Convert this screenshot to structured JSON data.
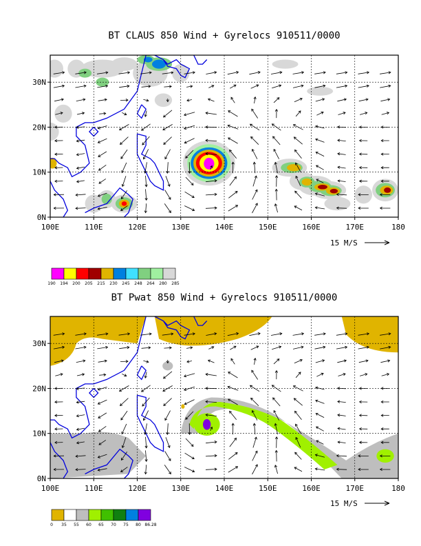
{
  "chart_data": [
    {
      "type": "heatmap",
      "title": "BT CLAUS 850 Wind + Gyrelocs 910511/0000",
      "x_ticks": [
        "100E",
        "110E",
        "120E",
        "130E",
        "140E",
        "150E",
        "160E",
        "170E",
        "180"
      ],
      "y_ticks": [
        "0N",
        "10N",
        "20N",
        "30N"
      ],
      "xlim": [
        100,
        180
      ],
      "ylim": [
        0,
        36
      ],
      "grid": true,
      "vector_scale_label": "15 M/S",
      "colorbar": {
        "labels": [
          "190",
          "194",
          "200",
          "205",
          "215",
          "230",
          "245",
          "248",
          "264",
          "280",
          "285"
        ],
        "colors": [
          "#ff00ff",
          "#ffff00",
          "#ff0000",
          "#a00000",
          "#e0b400",
          "#0080e0",
          "#40e0ff",
          "#80d080",
          "#a0f0a0",
          "#d8d8d8"
        ]
      }
    },
    {
      "type": "heatmap",
      "title": "BT Pwat 850 Wind + Gyrelocs 910511/0000",
      "x_ticks": [
        "100E",
        "110E",
        "120E",
        "130E",
        "140E",
        "150E",
        "160E",
        "170E",
        "180"
      ],
      "y_ticks": [
        "0N",
        "10N",
        "20N",
        "30N"
      ],
      "xlim": [
        100,
        180
      ],
      "ylim": [
        0,
        36
      ],
      "grid": true,
      "vector_scale_label": "15 M/S",
      "colorbar": {
        "labels": [
          "0",
          "35",
          "55",
          "60",
          "65",
          "70",
          "75",
          "80",
          "86.28"
        ],
        "colors": [
          "#e0b400",
          "#ffffff",
          "#bebebe",
          "#a0f000",
          "#40c000",
          "#108010",
          "#0080e0",
          "#8000e0"
        ]
      }
    }
  ]
}
